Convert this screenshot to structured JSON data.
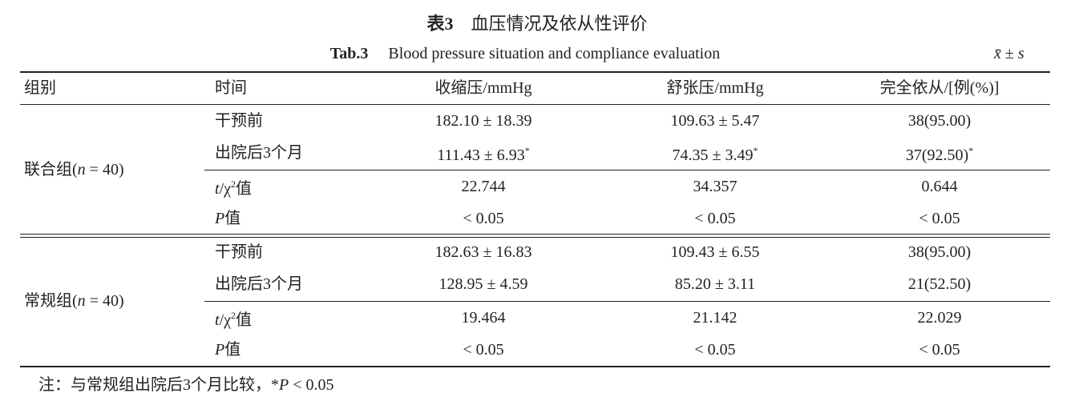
{
  "title": {
    "label": "表3",
    "text": "血压情况及依从性评价"
  },
  "subtitle": {
    "label": "Tab.3",
    "text": "Blood pressure situation and compliance evaluation"
  },
  "stat_marker": [
    {
      "text": "x̄",
      "italic": true
    },
    {
      "text": " ± "
    },
    {
      "text": "s",
      "italic": true
    }
  ],
  "table": {
    "header": [
      "组别",
      "时间",
      "收缩压/mmHg",
      "舒张压/mmHg",
      "完全依从/[例(%)]"
    ],
    "groups": [
      {
        "label": [
          {
            "text": "联合组("
          },
          {
            "text": "n",
            "italic": true
          },
          {
            "text": " = 40)"
          }
        ],
        "rows": [
          [
            "干预前",
            "182.10 ± 18.39",
            "109.63 ± 5.47",
            "38(95.00)"
          ],
          [
            "出院后3个月",
            [
              {
                "text": "111.43 ± 6.93"
              },
              {
                "text": "*",
                "sup": true
              }
            ],
            [
              {
                "text": "74.35 ± 3.49"
              },
              {
                "text": "*",
                "sup": true
              }
            ],
            [
              {
                "text": "37(92.50)"
              },
              {
                "text": "*",
                "sup": true
              }
            ]
          ],
          [
            [
              {
                "text": "t",
                "italic": true
              },
              {
                "text": "/χ"
              },
              {
                "text": "2",
                "sup": true
              },
              {
                "text": "值"
              }
            ],
            "22.744",
            "34.357",
            "0.644"
          ],
          [
            [
              {
                "text": "P",
                "italic": true
              },
              {
                "text": "值"
              }
            ],
            "< 0.05",
            "< 0.05",
            "< 0.05"
          ]
        ]
      },
      {
        "label": [
          {
            "text": "常规组("
          },
          {
            "text": "n",
            "italic": true
          },
          {
            "text": " = 40)"
          }
        ],
        "rows": [
          [
            "干预前",
            "182.63 ± 16.83",
            "109.43 ± 6.55",
            "38(95.00)"
          ],
          [
            "出院后3个月",
            "128.95 ± 4.59",
            "85.20 ± 3.11",
            "21(52.50)"
          ],
          [
            [
              {
                "text": "t",
                "italic": true
              },
              {
                "text": "/χ"
              },
              {
                "text": "2",
                "sup": true
              },
              {
                "text": "值"
              }
            ],
            "19.464",
            "21.142",
            "22.029"
          ],
          [
            [
              {
                "text": "P",
                "italic": true
              },
              {
                "text": "值"
              }
            ],
            "< 0.05",
            "< 0.05",
            "< 0.05"
          ]
        ]
      }
    ]
  },
  "note": [
    {
      "text": "注：与常规组出院后3个月比较，*"
    },
    {
      "text": "P",
      "italic": true
    },
    {
      "text": " < 0.05"
    }
  ]
}
